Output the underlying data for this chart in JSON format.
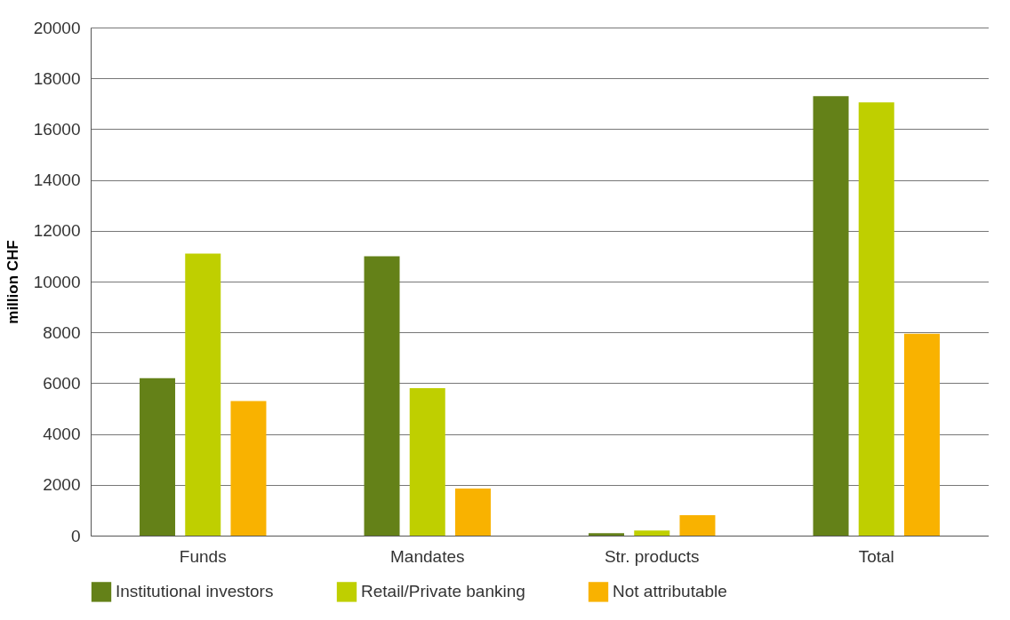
{
  "chart_data": {
    "type": "bar",
    "ylabel": "million CHF",
    "categories": [
      "Funds",
      "Mandates",
      "Str. products",
      "Total"
    ],
    "series": [
      {
        "name": "Institutional investors",
        "color": "#648118",
        "values": [
          6200,
          11000,
          100,
          17300
        ]
      },
      {
        "name": "Retail/Private banking",
        "color": "#bfcf00",
        "values": [
          11100,
          5800,
          200,
          17050
        ]
      },
      {
        "name": "Not attributable",
        "color": "#f9b200",
        "values": [
          5300,
          1850,
          800,
          7950
        ]
      }
    ],
    "ylim": [
      0,
      20000
    ],
    "yticks": [
      0,
      2000,
      4000,
      6000,
      8000,
      10000,
      12000,
      14000,
      16000,
      18000,
      20000
    ],
    "grid": "y",
    "legend": "bottom"
  }
}
